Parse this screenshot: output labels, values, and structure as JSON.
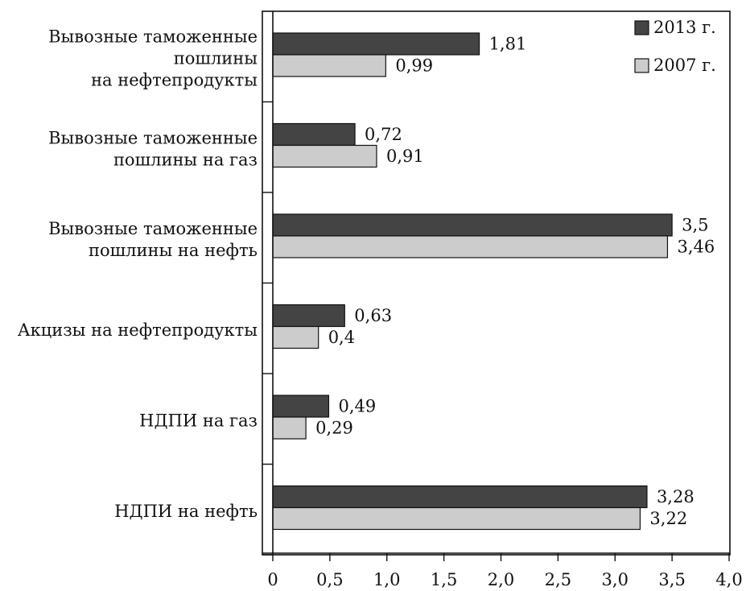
{
  "chart_data": {
    "type": "bar",
    "orientation": "horizontal",
    "categories": [
      [
        "Вывозные таможенные",
        "пошлины",
        "на нефтепродукты"
      ],
      [
        "Вывозные таможенные",
        "пошлины на газ"
      ],
      [
        "Вывозные таможенные",
        "пошлины на нефть"
      ],
      [
        "Акцизы на нефтепродукты"
      ],
      [
        "НДПИ на газ"
      ],
      [
        "НДПИ на нефть"
      ]
    ],
    "series": [
      {
        "name": "2013 г.",
        "color": "#444444",
        "values": [
          1.81,
          0.72,
          3.5,
          0.63,
          0.49,
          3.28
        ],
        "labels": [
          "1,81",
          "0,72",
          "3,5",
          "0,63",
          "0,49",
          "3,28"
        ]
      },
      {
        "name": "2007 г.",
        "color": "#cccccc",
        "values": [
          0.99,
          0.91,
          3.46,
          0.4,
          0.29,
          3.22
        ],
        "labels": [
          "0,99",
          "0,91",
          "3,46",
          "0,4",
          "0,29",
          "3,22"
        ]
      }
    ],
    "xlim": [
      0,
      4.0
    ],
    "xticks": [
      0,
      0.5,
      1.0,
      1.5,
      2.0,
      2.5,
      3.0,
      3.5,
      4.0
    ],
    "xtick_labels": [
      "0",
      "0,5",
      "1,0",
      "1,5",
      "2,0",
      "2,5",
      "3,0",
      "3,5",
      "4,0"
    ],
    "grid": false,
    "legend_position": "top-right",
    "title": "",
    "xlabel": "",
    "ylabel": ""
  }
}
